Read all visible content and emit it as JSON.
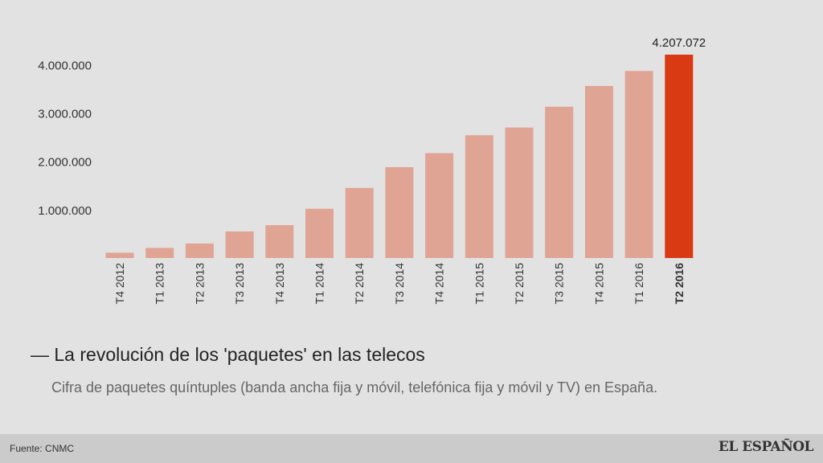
{
  "chart_data": {
    "type": "bar",
    "categories": [
      "T4 2012",
      "T1 2013",
      "T2 2013",
      "T3 2013",
      "T4 2013",
      "T1 2014",
      "T2 2014",
      "T3 2014",
      "T4 2014",
      "T1 2015",
      "T2 2015",
      "T3 2015",
      "T4 2015",
      "T1 2016",
      "T2 2016"
    ],
    "values": [
      110000,
      210000,
      300000,
      550000,
      680000,
      1020000,
      1450000,
      1880000,
      2170000,
      2540000,
      2700000,
      3130000,
      3560000,
      3870000,
      4207072
    ],
    "highlight_index": 14,
    "highlight_label": "4.207.072",
    "yticks": [
      1000000,
      2000000,
      3000000,
      4000000
    ],
    "ytick_labels": [
      "1.000.000",
      "2.000.000",
      "3.000.000",
      "4.000.000"
    ],
    "ylim": [
      0,
      4207072
    ],
    "grid": false,
    "bar_color": "#e0a494",
    "highlight_color": "#d93a14"
  },
  "title": "— La revolución de los 'paquetes' en las telecos",
  "subtitle": "Cifra de paquetes quíntuples (banda ancha fija y móvil, telefónica fija y móvil y TV) en España.",
  "footer": {
    "source": "Fuente: CNMC",
    "logo": "EL ESPAÑOL"
  }
}
